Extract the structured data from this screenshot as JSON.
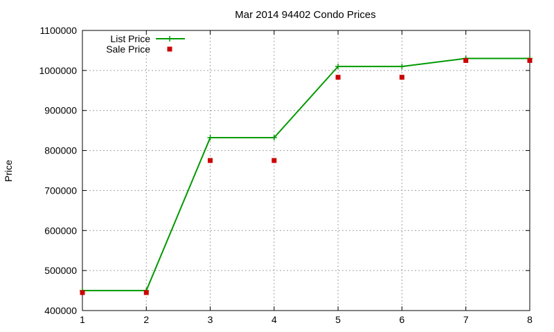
{
  "chart_data": {
    "type": "line",
    "title": "Mar 2014 94402 Condo Prices",
    "xlabel": "",
    "ylabel": "Price",
    "x": [
      1,
      2,
      3,
      4,
      5,
      6,
      7,
      8
    ],
    "xlim": [
      1,
      8
    ],
    "ylim": [
      400000,
      1100000
    ],
    "x_ticks": [
      "1",
      "2",
      "3",
      "4",
      "5",
      "6",
      "7",
      "8"
    ],
    "y_ticks": [
      "400000",
      "500000",
      "600000",
      "700000",
      "800000",
      "900000",
      "1000000",
      "1100000"
    ],
    "grid": true,
    "legend_position": "top-left",
    "series": [
      {
        "name": "List Price",
        "type": "line",
        "marker": "plus",
        "color": "#009900",
        "values": [
          450000,
          450000,
          832000,
          832000,
          1010000,
          1010000,
          1030000,
          1030000
        ]
      },
      {
        "name": "Sale Price",
        "type": "scatter",
        "marker": "square",
        "color": "#cc0000",
        "values": [
          445000,
          445000,
          775000,
          775000,
          983000,
          983000,
          1025000,
          1025000
        ]
      }
    ]
  }
}
